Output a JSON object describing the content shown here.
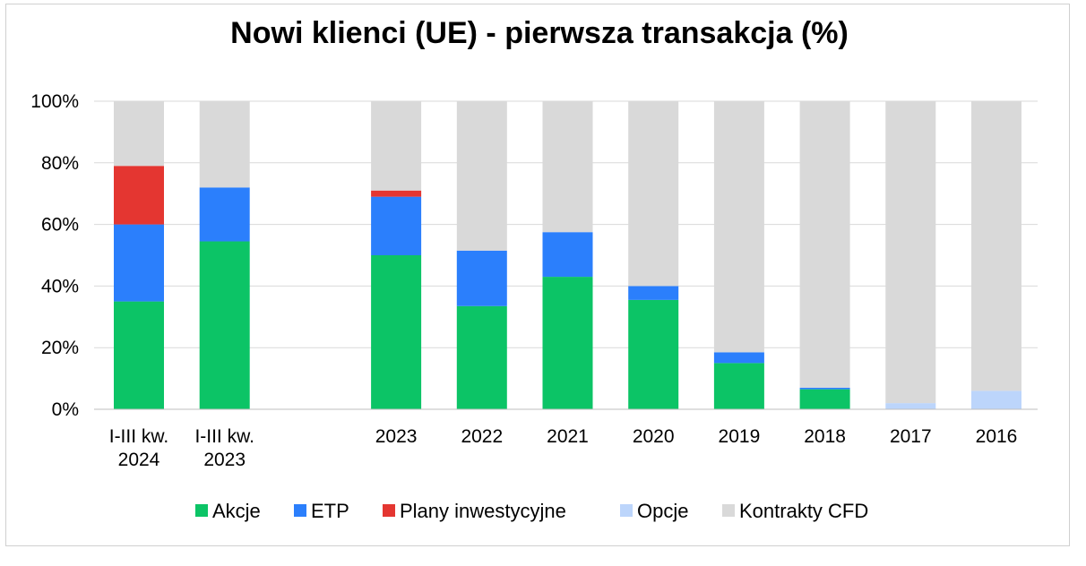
{
  "chart_data": {
    "type": "bar",
    "stacked": true,
    "title": "Nowi klienci (UE) - pierwsza transakcja (%)",
    "categories": [
      [
        "I-III kw.",
        "2024"
      ],
      [
        "I-III kw.",
        "2023"
      ],
      [
        "2023"
      ],
      [
        "2022"
      ],
      [
        "2021"
      ],
      [
        "2020"
      ],
      [
        "2019"
      ],
      [
        "2018"
      ],
      [
        "2017"
      ],
      [
        "2016"
      ]
    ],
    "gap_after_index": 1,
    "ylim": [
      0,
      100
    ],
    "yticks": [
      "0%",
      "20%",
      "40%",
      "60%",
      "80%",
      "100%"
    ],
    "grid": true,
    "legend_position": "bottom",
    "series": [
      {
        "name": "Akcje",
        "color": "#0cc466",
        "values": [
          35,
          54.5,
          50,
          33.5,
          43,
          35.5,
          15,
          6.5,
          0,
          0
        ]
      },
      {
        "name": "ETP",
        "color": "#2b7ffc",
        "values": [
          25,
          17.5,
          19,
          18,
          14.5,
          4.5,
          3.5,
          0.5,
          0,
          0
        ]
      },
      {
        "name": "Plany inwestycyjne",
        "color": "#e43631",
        "values": [
          19,
          0,
          2,
          0,
          0,
          0,
          0,
          0,
          0,
          0
        ]
      },
      {
        "name": "Opcje",
        "color": "#bcd5fb",
        "values": [
          0,
          0,
          0,
          0,
          0,
          0,
          0,
          0,
          2,
          6
        ]
      },
      {
        "name": "Kontrakty CFD",
        "color": "#d9d9d9",
        "values": [
          21,
          28,
          29,
          48.5,
          42.5,
          60,
          81.5,
          93,
          98,
          94
        ]
      }
    ]
  }
}
